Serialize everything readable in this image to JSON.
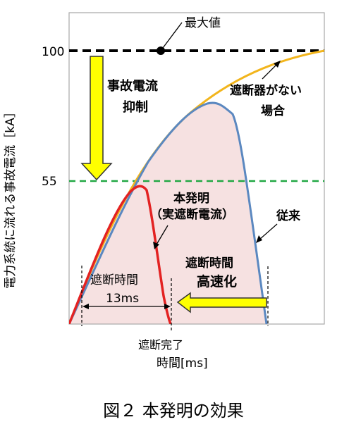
{
  "y_axis_label": "電力系統に流れる事故電流［kA］",
  "y_ticks": {
    "top": "100",
    "mid": "55"
  },
  "x_axis_label": "時間[ms]",
  "annotations": {
    "max_value": "最大値",
    "suppression_line1": "事故電流",
    "suppression_line2": "抑制",
    "no_breaker_line1": "遮断器がない",
    "no_breaker_line2": "場合",
    "invention_line1": "本発明",
    "invention_line2": "（実遮断電流）",
    "conventional": "従来",
    "speedup_line1": "遮断時間",
    "speedup_line2": "高速化",
    "break_time_label": "遮断時間",
    "break_time_value": "13ms",
    "break_complete": "遮断完了"
  },
  "caption": "図２ 本発明の効果",
  "colors": {
    "no_breaker_curve": "#f2b51c",
    "conventional_curve": "#5b88c0",
    "conventional_fill": "#f6e1e1",
    "invention_curve": "#e32222",
    "max_line": "#000000",
    "level_55_line": "#22a844",
    "arrow_fill": "#ffff00"
  }
}
